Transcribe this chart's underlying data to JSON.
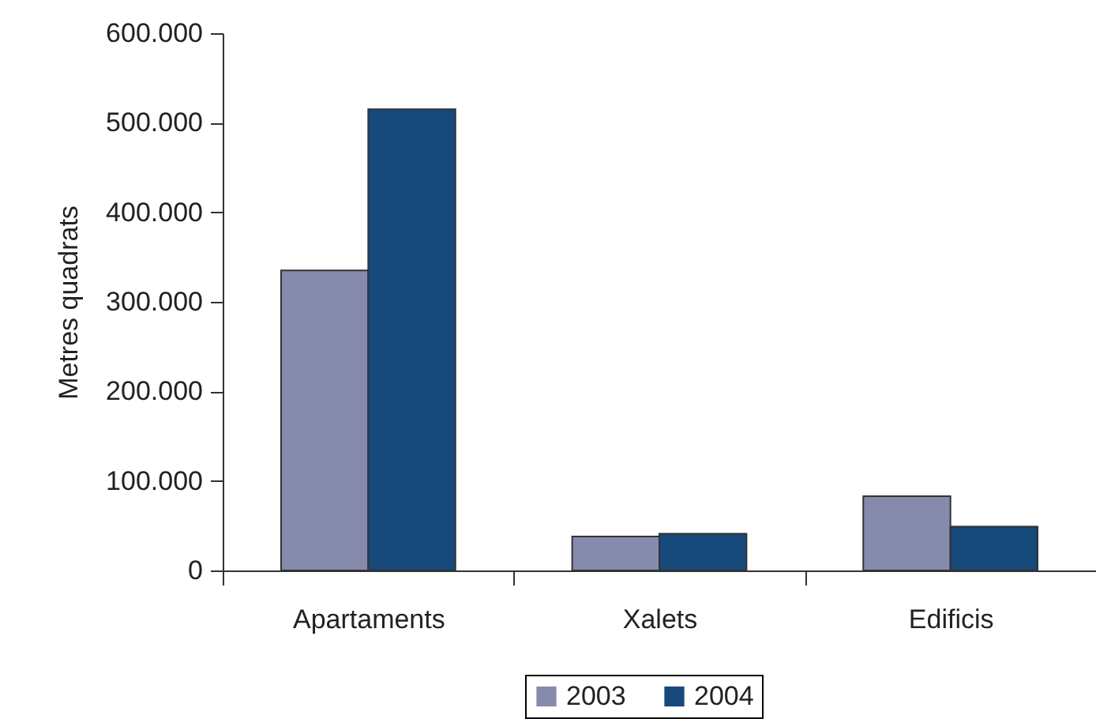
{
  "chart_data": {
    "type": "bar",
    "ylabel": "Metres quadrats",
    "categories": [
      "Apartaments",
      "Xalets",
      "Edificis"
    ],
    "series": [
      {
        "name": "2003",
        "color": "#868aad",
        "values": [
          335000,
          38000,
          83000
        ]
      },
      {
        "name": "2004",
        "color": "#17497b",
        "values": [
          515000,
          41000,
          49000
        ]
      }
    ],
    "ylim": [
      0,
      600000
    ],
    "yticks": [
      0,
      {
        "value": 100000,
        "label": "100.000"
      },
      {
        "value": 200000,
        "label": "200.000"
      },
      {
        "value": 300000,
        "label": "300.000"
      },
      {
        "value": 400000,
        "label": "400.000"
      },
      {
        "value": 500000,
        "label": "500.000"
      },
      {
        "value": 600000,
        "label": "600.000"
      }
    ],
    "legend": "bottom"
  }
}
